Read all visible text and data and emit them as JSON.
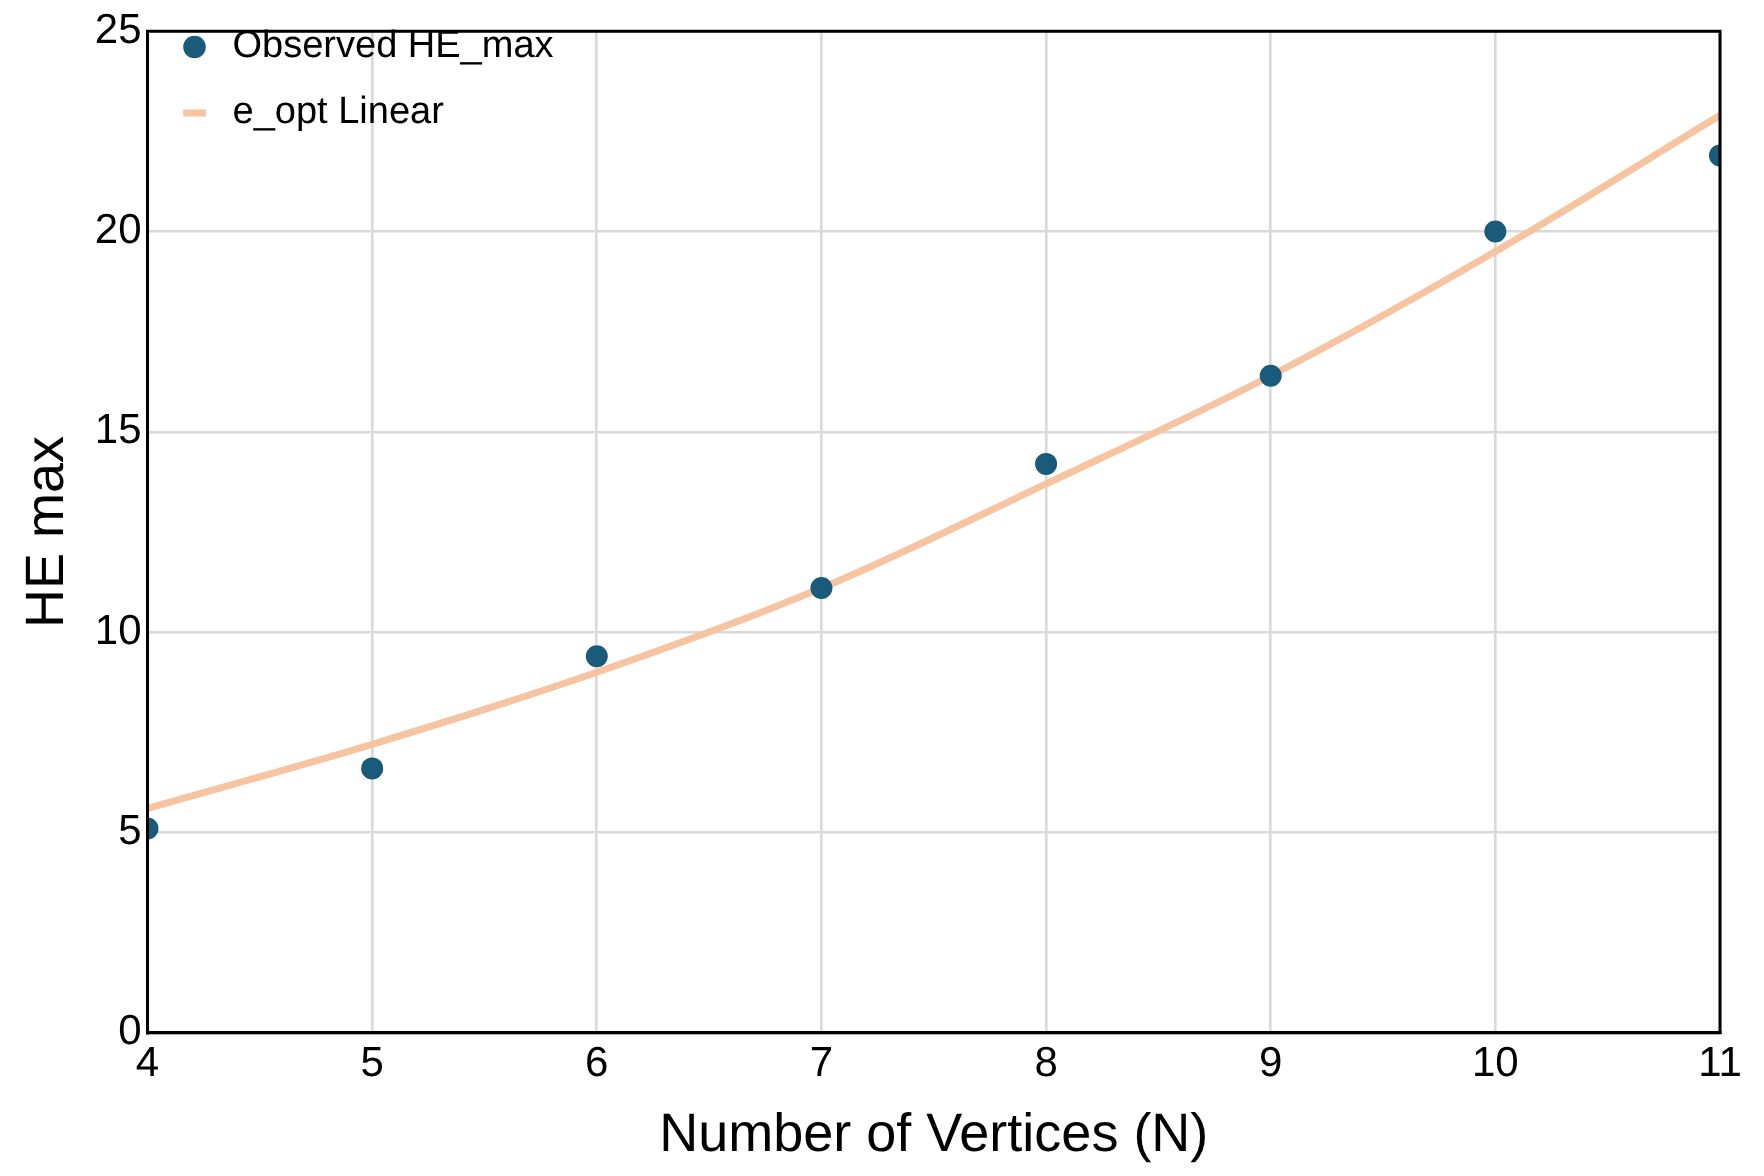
{
  "chart_data": {
    "type": "scatter",
    "xlabel": "Number of Vertices (N)",
    "ylabel": "HE max",
    "x": [
      4,
      5,
      6,
      7,
      8,
      9,
      10,
      11
    ],
    "series": [
      {
        "name": "Observed HE_max",
        "marker": "circle",
        "color": "#1a5a7a",
        "values": [
          5.1,
          6.6,
          9.4,
          11.1,
          14.2,
          16.4,
          20.0,
          21.9
        ]
      },
      {
        "name": "e_opt Linear",
        "type": "line",
        "marker": "none",
        "color": "#f7c4a2",
        "values": [
          5.6,
          7.2,
          9.0,
          11.1,
          13.7,
          16.4,
          19.5,
          22.9
        ]
      }
    ],
    "xlim": [
      4,
      11
    ],
    "xticks": [
      4,
      5,
      6,
      7,
      8,
      9,
      10,
      11
    ],
    "ylim": [
      0,
      25
    ],
    "yticks": [
      0,
      5,
      10,
      15,
      20,
      25
    ],
    "grid": true,
    "legend": "top left"
  }
}
